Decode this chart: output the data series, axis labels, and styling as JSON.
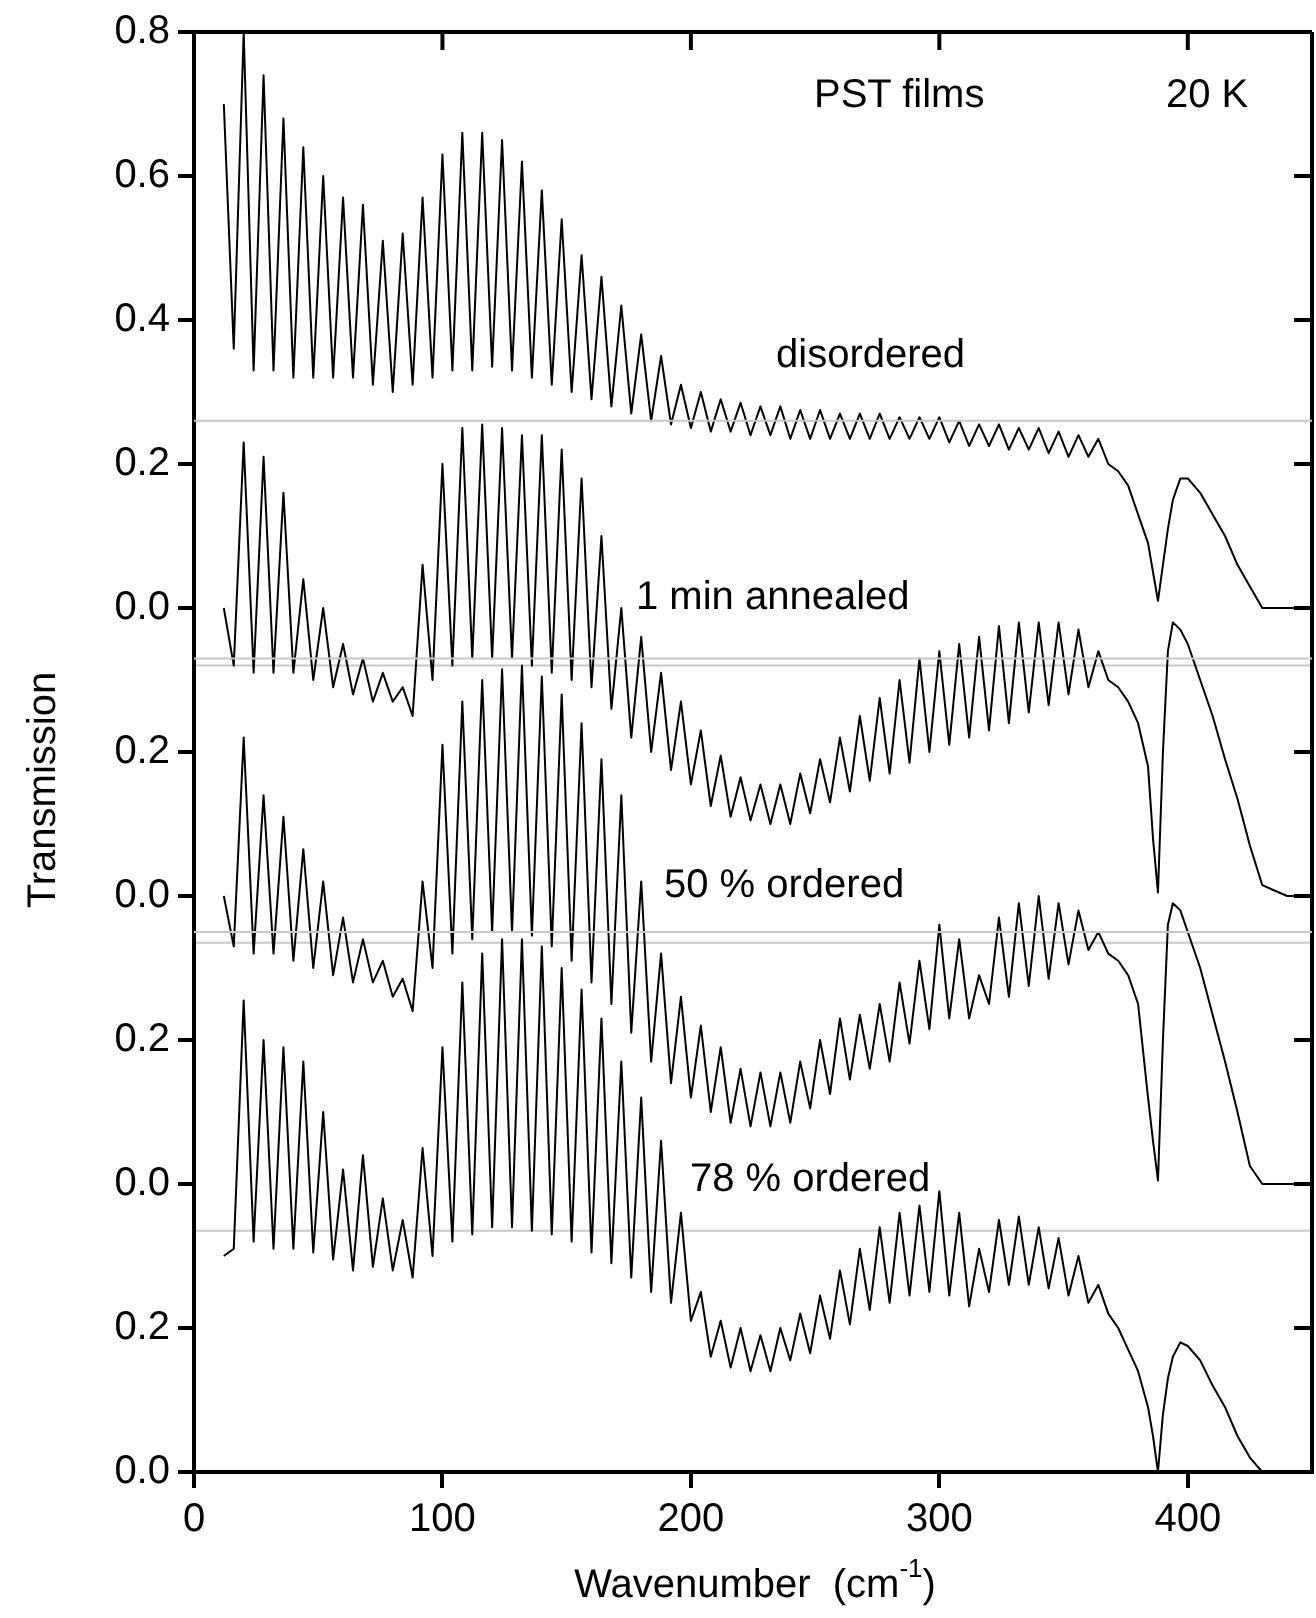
{
  "chart_data": [
    {
      "type": "line",
      "annotations": [
        "PST films",
        "20 K"
      ],
      "xlim": [
        0,
        450
      ],
      "xticks": [
        0,
        100,
        200,
        300,
        400
      ],
      "ylim": [
        -0.08,
        0.8
      ],
      "yticks": [
        {
          "value": 0,
          "label": "0.0"
        },
        {
          "value": 0.2,
          "label": "0.2"
        },
        {
          "value": 0.4,
          "label": "0.4"
        },
        {
          "value": 0.6,
          "label": "0.6"
        },
        {
          "value": 0.8,
          "label": "0.8"
        }
      ],
      "tick_labels": "y",
      "legend": false,
      "marker": "none",
      "line_style": "solid",
      "x": [
        12,
        16,
        20,
        24,
        28,
        32,
        36,
        40,
        44,
        48,
        52,
        56,
        60,
        64,
        68,
        72,
        76,
        80,
        84,
        88,
        92,
        96,
        100,
        104,
        108,
        112,
        116,
        120,
        124,
        128,
        132,
        136,
        140,
        144,
        148,
        152,
        156,
        160,
        164,
        168,
        172,
        176,
        180,
        184,
        188,
        192,
        196,
        200,
        204,
        208,
        212,
        216,
        220,
        224,
        228,
        232,
        236,
        240,
        244,
        248,
        252,
        256,
        260,
        264,
        268,
        272,
        276,
        280,
        284,
        288,
        292,
        296,
        300,
        304,
        308,
        312,
        316,
        320,
        324,
        328,
        332,
        336,
        340,
        344,
        348,
        352,
        356,
        360,
        364,
        368,
        372,
        376,
        380,
        384,
        386,
        388,
        390,
        392,
        394,
        397,
        400,
        405,
        410,
        415,
        420,
        425,
        430,
        440,
        450
      ],
      "series": [
        {
          "name": "disordered",
          "color": "#000000",
          "values": [
            0.7,
            0.36,
            0.8,
            0.33,
            0.74,
            0.33,
            0.68,
            0.32,
            0.64,
            0.32,
            0.6,
            0.32,
            0.57,
            0.32,
            0.56,
            0.31,
            0.51,
            0.3,
            0.52,
            0.31,
            0.57,
            0.32,
            0.63,
            0.33,
            0.66,
            0.33,
            0.66,
            0.335,
            0.65,
            0.33,
            0.62,
            0.32,
            0.58,
            0.31,
            0.54,
            0.3,
            0.49,
            0.29,
            0.46,
            0.28,
            0.42,
            0.27,
            0.38,
            0.26,
            0.35,
            0.255,
            0.31,
            0.25,
            0.3,
            0.245,
            0.29,
            0.245,
            0.285,
            0.24,
            0.28,
            0.24,
            0.28,
            0.235,
            0.275,
            0.235,
            0.275,
            0.235,
            0.27,
            0.235,
            0.27,
            0.235,
            0.27,
            0.235,
            0.265,
            0.235,
            0.265,
            0.235,
            0.265,
            0.23,
            0.26,
            0.225,
            0.255,
            0.225,
            0.255,
            0.22,
            0.25,
            0.22,
            0.25,
            0.215,
            0.245,
            0.21,
            0.24,
            0.21,
            0.235,
            0.2,
            0.19,
            0.17,
            0.13,
            0.09,
            0.05,
            0.01,
            0.06,
            0.11,
            0.15,
            0.18,
            0.18,
            0.16,
            0.13,
            0.1,
            0.06,
            0.03,
            0.0,
            0.0,
            0.0
          ]
        }
      ]
    },
    {
      "type": "line",
      "ylabel": "Transmission",
      "xlim": [
        0,
        450
      ],
      "xticks": [
        0,
        100,
        200,
        300,
        400
      ],
      "ylim": [
        -0.065,
        0.66
      ],
      "yticks": [
        {
          "value": 0,
          "label": "0.0"
        },
        {
          "value": 0.2,
          "label": "0.2"
        }
      ],
      "tick_labels": "y",
      "legend": false,
      "marker": "none",
      "line_style": "solid",
      "x": [
        12,
        16,
        20,
        24,
        28,
        32,
        36,
        40,
        44,
        48,
        52,
        56,
        60,
        64,
        68,
        72,
        76,
        80,
        84,
        88,
        92,
        96,
        100,
        104,
        108,
        112,
        116,
        120,
        124,
        128,
        132,
        136,
        140,
        144,
        148,
        152,
        156,
        160,
        164,
        168,
        172,
        176,
        180,
        184,
        188,
        192,
        196,
        200,
        204,
        208,
        212,
        216,
        220,
        224,
        228,
        232,
        236,
        240,
        244,
        248,
        252,
        256,
        260,
        264,
        268,
        272,
        276,
        280,
        284,
        288,
        292,
        296,
        300,
        304,
        308,
        312,
        316,
        320,
        324,
        328,
        332,
        336,
        340,
        344,
        348,
        352,
        356,
        360,
        364,
        368,
        372,
        376,
        380,
        384,
        386,
        388,
        390,
        392,
        394,
        397,
        400,
        405,
        410,
        415,
        420,
        425,
        430,
        440,
        450
      ],
      "series": [
        {
          "name": "1 min annealed",
          "color": "#000000",
          "values": [
            0.4,
            0.32,
            0.63,
            0.31,
            0.61,
            0.31,
            0.56,
            0.31,
            0.44,
            0.3,
            0.4,
            0.29,
            0.35,
            0.28,
            0.33,
            0.27,
            0.31,
            0.27,
            0.29,
            0.25,
            0.46,
            0.3,
            0.6,
            0.32,
            0.65,
            0.33,
            0.655,
            0.33,
            0.65,
            0.33,
            0.64,
            0.32,
            0.64,
            0.31,
            0.62,
            0.3,
            0.58,
            0.29,
            0.5,
            0.26,
            0.4,
            0.22,
            0.36,
            0.2,
            0.31,
            0.175,
            0.27,
            0.155,
            0.23,
            0.125,
            0.195,
            0.11,
            0.165,
            0.105,
            0.155,
            0.1,
            0.155,
            0.1,
            0.17,
            0.115,
            0.19,
            0.13,
            0.22,
            0.145,
            0.25,
            0.16,
            0.275,
            0.17,
            0.3,
            0.185,
            0.33,
            0.2,
            0.34,
            0.21,
            0.35,
            0.22,
            0.36,
            0.23,
            0.375,
            0.24,
            0.38,
            0.255,
            0.38,
            0.265,
            0.38,
            0.28,
            0.37,
            0.29,
            0.34,
            0.3,
            0.29,
            0.27,
            0.24,
            0.18,
            0.08,
            0.005,
            0.2,
            0.34,
            0.38,
            0.37,
            0.35,
            0.3,
            0.25,
            0.19,
            0.135,
            0.07,
            0.015,
            0.0,
            0.0
          ]
        }
      ]
    },
    {
      "type": "line",
      "xlim": [
        0,
        450
      ],
      "xticks": [
        0,
        100,
        200,
        300,
        400
      ],
      "ylim": [
        -0.065,
        0.73
      ],
      "yticks": [
        {
          "value": 0,
          "label": "0.0"
        },
        {
          "value": 0.2,
          "label": "0.2"
        }
      ],
      "tick_labels": "y",
      "legend": false,
      "marker": "none",
      "line_style": "solid",
      "x": [
        12,
        16,
        20,
        24,
        28,
        32,
        36,
        40,
        44,
        48,
        52,
        56,
        60,
        64,
        68,
        72,
        76,
        80,
        84,
        88,
        92,
        96,
        100,
        104,
        108,
        112,
        116,
        120,
        124,
        128,
        132,
        136,
        140,
        144,
        148,
        152,
        156,
        160,
        164,
        168,
        172,
        176,
        180,
        184,
        188,
        192,
        196,
        200,
        204,
        208,
        212,
        216,
        220,
        224,
        228,
        232,
        236,
        240,
        244,
        248,
        252,
        256,
        260,
        264,
        268,
        272,
        276,
        280,
        284,
        288,
        292,
        296,
        300,
        304,
        308,
        312,
        316,
        320,
        324,
        328,
        332,
        336,
        340,
        344,
        348,
        352,
        356,
        360,
        364,
        368,
        372,
        376,
        380,
        384,
        386,
        388,
        390,
        392,
        394,
        397,
        400,
        405,
        410,
        415,
        420,
        425,
        430,
        440,
        450
      ],
      "series": [
        {
          "name": "50 % ordered",
          "color": "#000000",
          "values": [
            0.4,
            0.33,
            0.62,
            0.32,
            0.54,
            0.32,
            0.51,
            0.31,
            0.465,
            0.3,
            0.42,
            0.29,
            0.37,
            0.28,
            0.34,
            0.28,
            0.31,
            0.26,
            0.285,
            0.24,
            0.42,
            0.3,
            0.61,
            0.32,
            0.67,
            0.34,
            0.7,
            0.35,
            0.715,
            0.35,
            0.72,
            0.345,
            0.705,
            0.33,
            0.68,
            0.31,
            0.64,
            0.28,
            0.59,
            0.25,
            0.54,
            0.21,
            0.42,
            0.17,
            0.32,
            0.14,
            0.26,
            0.12,
            0.22,
            0.1,
            0.19,
            0.085,
            0.16,
            0.08,
            0.155,
            0.08,
            0.155,
            0.085,
            0.17,
            0.105,
            0.2,
            0.125,
            0.23,
            0.145,
            0.235,
            0.16,
            0.25,
            0.17,
            0.28,
            0.195,
            0.31,
            0.215,
            0.36,
            0.23,
            0.34,
            0.23,
            0.29,
            0.25,
            0.37,
            0.26,
            0.39,
            0.275,
            0.4,
            0.285,
            0.39,
            0.305,
            0.38,
            0.325,
            0.35,
            0.32,
            0.31,
            0.29,
            0.25,
            0.12,
            0.06,
            0.005,
            0.2,
            0.36,
            0.39,
            0.38,
            0.35,
            0.3,
            0.235,
            0.17,
            0.1,
            0.025,
            0.0,
            0.0,
            0.0
          ]
        }
      ]
    },
    {
      "type": "line",
      "xlabel": "Wavenumber  (cm$^{-1}$)",
      "xlim": [
        0,
        450
      ],
      "xticks": [
        0,
        100,
        200,
        300,
        400
      ],
      "ylim": [
        0,
        0.75
      ],
      "yticks": [
        {
          "value": 0,
          "label": "0.0"
        },
        {
          "value": 0.2,
          "label": "0.2"
        }
      ],
      "legend": false,
      "marker": "none",
      "line_style": "solid",
      "x": [
        12,
        16,
        20,
        24,
        28,
        32,
        36,
        40,
        44,
        48,
        52,
        56,
        60,
        64,
        68,
        72,
        76,
        80,
        84,
        88,
        92,
        96,
        100,
        104,
        108,
        112,
        116,
        120,
        124,
        128,
        132,
        136,
        140,
        144,
        148,
        152,
        156,
        160,
        164,
        168,
        172,
        176,
        180,
        184,
        188,
        192,
        196,
        200,
        204,
        208,
        212,
        216,
        220,
        224,
        228,
        232,
        236,
        240,
        244,
        248,
        252,
        256,
        260,
        264,
        268,
        272,
        276,
        280,
        284,
        288,
        292,
        296,
        300,
        304,
        308,
        312,
        316,
        320,
        324,
        328,
        332,
        336,
        340,
        344,
        348,
        352,
        356,
        360,
        364,
        368,
        372,
        376,
        380,
        384,
        386,
        388,
        390,
        392,
        394,
        397,
        400,
        405,
        410,
        415,
        420,
        425,
        430,
        440,
        450
      ],
      "series": [
        {
          "name": "78 % ordered",
          "color": "#000000",
          "values": [
            0.3,
            0.31,
            0.655,
            0.32,
            0.6,
            0.31,
            0.59,
            0.31,
            0.57,
            0.305,
            0.5,
            0.295,
            0.42,
            0.28,
            0.44,
            0.285,
            0.38,
            0.28,
            0.35,
            0.27,
            0.45,
            0.3,
            0.59,
            0.32,
            0.68,
            0.33,
            0.72,
            0.34,
            0.74,
            0.34,
            0.74,
            0.335,
            0.73,
            0.33,
            0.7,
            0.32,
            0.67,
            0.305,
            0.63,
            0.29,
            0.57,
            0.27,
            0.52,
            0.25,
            0.46,
            0.235,
            0.36,
            0.21,
            0.25,
            0.16,
            0.21,
            0.145,
            0.2,
            0.14,
            0.19,
            0.14,
            0.2,
            0.155,
            0.22,
            0.165,
            0.245,
            0.185,
            0.28,
            0.205,
            0.31,
            0.225,
            0.34,
            0.235,
            0.36,
            0.245,
            0.37,
            0.25,
            0.39,
            0.245,
            0.36,
            0.23,
            0.31,
            0.25,
            0.35,
            0.26,
            0.355,
            0.26,
            0.34,
            0.255,
            0.325,
            0.245,
            0.3,
            0.235,
            0.26,
            0.22,
            0.2,
            0.17,
            0.14,
            0.09,
            0.05,
            0.0,
            0.08,
            0.13,
            0.16,
            0.18,
            0.175,
            0.155,
            0.12,
            0.09,
            0.05,
            0.02,
            0.0,
            0.0,
            0.0
          ]
        }
      ]
    }
  ]
}
